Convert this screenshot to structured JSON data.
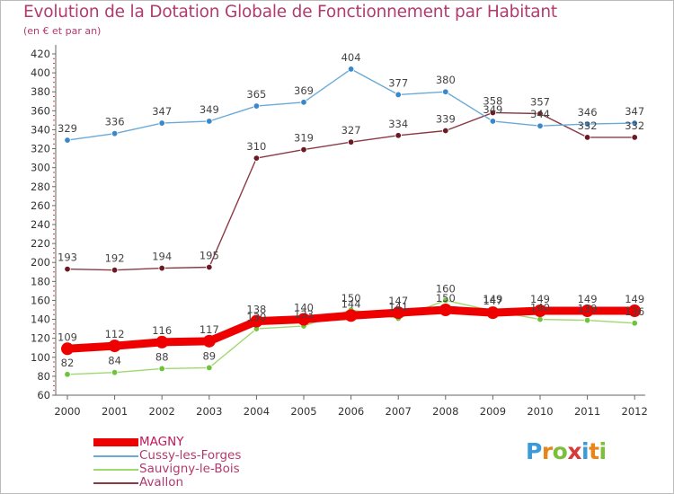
{
  "header": {
    "title": "Evolution de la Dotation Globale de Fonctionnement par Habitant",
    "subtitle": "(en € et par an)"
  },
  "brand": {
    "letters": [
      "P",
      "r",
      "o",
      "x",
      "i",
      "t",
      "i"
    ],
    "colors": [
      "#3a9bd8",
      "#e8851a",
      "#7bbf3a",
      "#d83a3a",
      "#3a9bd8",
      "#e8851a",
      "#7bbf3a"
    ]
  },
  "chart_data": {
    "type": "line",
    "title": "Evolution de la Dotation Globale de Fonctionnement par Habitant",
    "subtitle": "(en € et par an)",
    "xlabel": "",
    "ylabel": "",
    "categories": [
      "2000",
      "2001",
      "2002",
      "2003",
      "2004",
      "2005",
      "2006",
      "2007",
      "2008",
      "2009",
      "2010",
      "2011",
      "2012"
    ],
    "ylim": [
      60,
      420
    ],
    "yticks": [
      60,
      80,
      100,
      120,
      140,
      160,
      180,
      200,
      220,
      240,
      260,
      280,
      300,
      320,
      340,
      360,
      380,
      400,
      420
    ],
    "grid": false,
    "legend_position": "bottom-left",
    "series": [
      {
        "name": "MAGNY",
        "color": "#ee0000",
        "marker_color": "#ee0000",
        "emphasis": true,
        "values": [
          109,
          112,
          116,
          117,
          138,
          140,
          144,
          147,
          150,
          147,
          149,
          149,
          149
        ],
        "labels": [
          "109",
          "112",
          "116",
          "117",
          "138",
          "140",
          "144",
          "147",
          "150",
          "147",
          "149",
          "149",
          "149"
        ]
      },
      {
        "name": "Cussy-les-Forges",
        "color": "#6aaad8",
        "marker_color": "#3a88cc",
        "emphasis": false,
        "values": [
          329,
          336,
          347,
          349,
          365,
          369,
          404,
          377,
          380,
          349,
          344,
          346,
          347
        ],
        "labels": [
          "329",
          "336",
          "347",
          "349",
          "365",
          "369",
          "404",
          "377",
          "380",
          "349",
          "344",
          "346",
          "347"
        ]
      },
      {
        "name": "Sauvigny-le-Bois",
        "color": "#a0d870",
        "marker_color": "#6cc43a",
        "emphasis": false,
        "values": [
          82,
          84,
          88,
          89,
          130,
          133,
          150,
          141,
          160,
          149,
          140,
          139,
          136
        ],
        "labels": [
          "82",
          "84",
          "88",
          "89",
          "130",
          "133",
          "150",
          "141",
          "160",
          "149",
          "140",
          "139",
          "136"
        ]
      },
      {
        "name": "Avallon",
        "color": "#8a3a44",
        "marker_color": "#6a1a22",
        "emphasis": false,
        "values": [
          193,
          192,
          194,
          195,
          310,
          319,
          327,
          334,
          339,
          358,
          357,
          332,
          332
        ],
        "labels": [
          "193",
          "192",
          "194",
          "195",
          "310",
          "319",
          "327",
          "334",
          "339",
          "358",
          "357",
          "332",
          "332"
        ]
      }
    ]
  }
}
